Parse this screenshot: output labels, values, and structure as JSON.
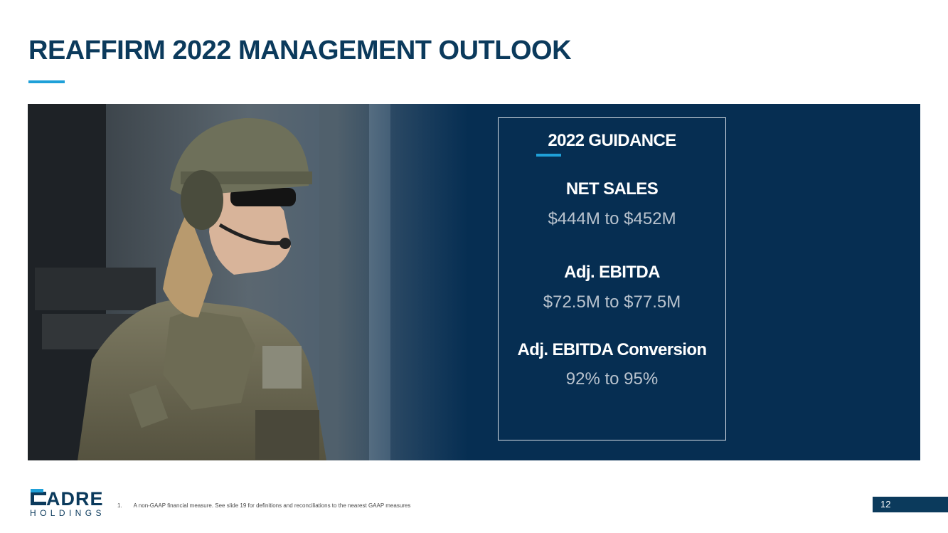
{
  "slide": {
    "title": "REAFFIRM 2022 MANAGEMENT OUTLOOK",
    "page_number": "12"
  },
  "hero": {
    "image_description_icon": "soldier-photo",
    "background_color": "#062e52"
  },
  "guidance": {
    "heading": "2022 GUIDANCE",
    "metrics": [
      {
        "label": "NET SALES",
        "value": "$444M to $452M"
      },
      {
        "label": "Adj. EBITDA",
        "value": "$72.5M to $77.5M"
      },
      {
        "label": "Adj. EBITDA Conversion",
        "value": "92% to 95%"
      }
    ]
  },
  "logo": {
    "word": "ADRE",
    "sub": "HOLDINGS"
  },
  "footnote": {
    "number": "1.",
    "text": "A non-GAAP financial measure. See slide 19 for definitions and reconciliations to the nearest GAAP measures"
  },
  "colors": {
    "brand_navy": "#0b3a5c",
    "accent_blue": "#1fa0d8",
    "value_gray": "#b9c3ce"
  }
}
